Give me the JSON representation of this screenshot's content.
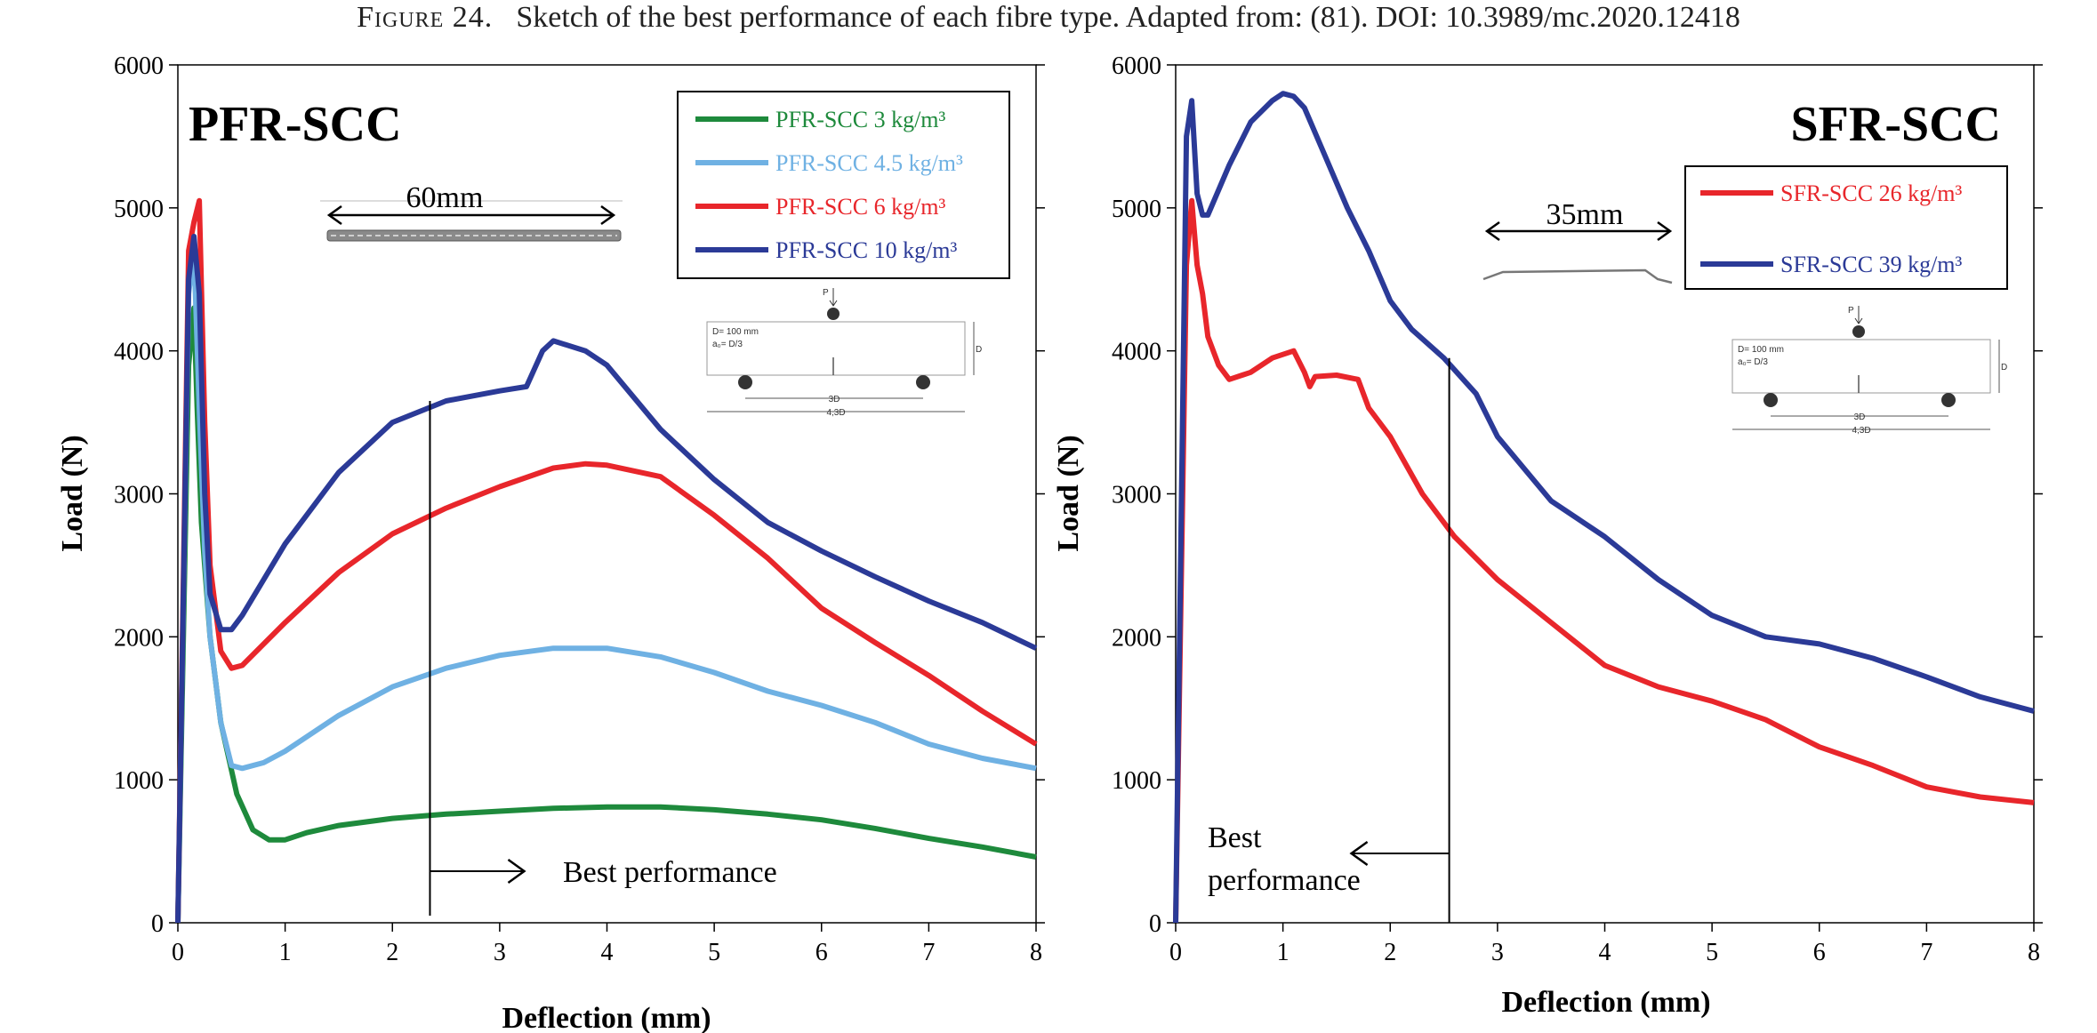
{
  "caption": {
    "label": "Figure 24.",
    "text": "Sketch of the best performance of each fibre type. Adapted from: (81). DOI: 10.3989/mc.2020.12418"
  },
  "colors": {
    "green": "#1e8a3c",
    "light_blue": "#6fb1e3",
    "red": "#e8262b",
    "dark_blue": "#2b3a97"
  },
  "chart_data": [
    {
      "type": "line",
      "title": "PFR-SCC",
      "xlabel": "Deflection (mm)",
      "ylabel": "Load (N)",
      "xlim": [
        0,
        8
      ],
      "ylim": [
        0,
        6000
      ],
      "x_ticks": [
        0,
        1,
        2,
        3,
        4,
        5,
        6,
        7,
        8
      ],
      "y_ticks": [
        0,
        1000,
        2000,
        3000,
        4000,
        5000,
        6000
      ],
      "legend_position": "top-right",
      "fibre_length_label": "60mm",
      "best_performance": {
        "deflection": 2.35,
        "label": "Best performance",
        "direction": "right"
      },
      "series": [
        {
          "name": "PFR-SCC 3 kg/m³",
          "color": "#1e8a3c",
          "x": [
            0,
            0.1,
            0.15,
            0.18,
            0.22,
            0.3,
            0.4,
            0.55,
            0.7,
            0.85,
            1.0,
            1.2,
            1.5,
            2.0,
            2.5,
            3.0,
            3.5,
            4.0,
            4.5,
            5.0,
            5.5,
            6.0,
            6.5,
            7.0,
            7.5,
            8.0
          ],
          "y": [
            0,
            3900,
            4300,
            3600,
            2800,
            2000,
            1400,
            900,
            650,
            580,
            580,
            630,
            680,
            730,
            760,
            780,
            800,
            810,
            810,
            790,
            760,
            720,
            660,
            590,
            530,
            460
          ]
        },
        {
          "name": "PFR-SCC 4.5 kg/m³",
          "color": "#6fb1e3",
          "x": [
            0,
            0.1,
            0.15,
            0.2,
            0.25,
            0.3,
            0.4,
            0.5,
            0.6,
            0.8,
            1.0,
            1.5,
            2.0,
            2.5,
            3.0,
            3.5,
            4.0,
            4.5,
            5.0,
            5.5,
            6.0,
            6.5,
            7.0,
            7.5,
            8.0
          ],
          "y": [
            0,
            4400,
            4700,
            3600,
            2600,
            2000,
            1400,
            1100,
            1080,
            1120,
            1200,
            1450,
            1650,
            1780,
            1870,
            1920,
            1920,
            1860,
            1750,
            1620,
            1520,
            1400,
            1250,
            1150,
            1080
          ]
        },
        {
          "name": "PFR-SCC 6 kg/m³",
          "color": "#e8262b",
          "x": [
            0,
            0.1,
            0.15,
            0.2,
            0.25,
            0.3,
            0.4,
            0.5,
            0.6,
            0.8,
            1.0,
            1.5,
            2.0,
            2.5,
            3.0,
            3.5,
            3.8,
            4.0,
            4.5,
            5.0,
            5.5,
            6.0,
            6.5,
            7.0,
            7.5,
            8.0
          ],
          "y": [
            0,
            4700,
            4900,
            5050,
            3500,
            2500,
            1900,
            1780,
            1800,
            1950,
            2100,
            2450,
            2720,
            2900,
            3050,
            3180,
            3210,
            3200,
            3120,
            2850,
            2550,
            2200,
            1960,
            1730,
            1480,
            1250
          ]
        },
        {
          "name": "PFR-SCC 10 kg/m³",
          "color": "#2b3a97",
          "x": [
            0,
            0.1,
            0.15,
            0.2,
            0.25,
            0.3,
            0.4,
            0.5,
            0.6,
            0.8,
            1.0,
            1.5,
            2.0,
            2.5,
            3.0,
            3.25,
            3.4,
            3.5,
            3.8,
            4.0,
            4.5,
            5.0,
            5.5,
            6.0,
            6.5,
            7.0,
            7.5,
            8.0
          ],
          "y": [
            0,
            4500,
            4800,
            4400,
            3000,
            2300,
            2050,
            2050,
            2150,
            2400,
            2650,
            3150,
            3500,
            3650,
            3720,
            3750,
            4000,
            4070,
            4000,
            3900,
            3450,
            3100,
            2800,
            2600,
            2420,
            2250,
            2100,
            1920
          ]
        }
      ],
      "schematic": {
        "labels": [
          "P",
          "D= 100 mm",
          "a₀= D/3",
          "D",
          "3D",
          "4,3D"
        ]
      }
    },
    {
      "type": "line",
      "title": "SFR-SCC",
      "xlabel": "Deflection (mm)",
      "ylabel": "Load (N)",
      "xlim": [
        0,
        8
      ],
      "ylim": [
        0,
        6000
      ],
      "x_ticks": [
        0,
        1,
        2,
        3,
        4,
        5,
        6,
        7,
        8
      ],
      "y_ticks": [
        0,
        1000,
        2000,
        3000,
        4000,
        5000,
        6000
      ],
      "legend_position": "top-right",
      "fibre_length_label": "35mm",
      "best_performance": {
        "deflection": 2.55,
        "label_lines": [
          "Best",
          "performance"
        ],
        "direction": "left"
      },
      "series": [
        {
          "name": "SFR-SCC 26 kg/m³",
          "color": "#e8262b",
          "x": [
            0,
            0.1,
            0.15,
            0.2,
            0.25,
            0.3,
            0.4,
            0.5,
            0.7,
            0.9,
            1.1,
            1.2,
            1.25,
            1.3,
            1.5,
            1.7,
            1.8,
            2.0,
            2.3,
            2.6,
            3.0,
            3.5,
            4.0,
            4.5,
            5.0,
            5.5,
            6.0,
            6.5,
            7.0,
            7.5,
            8.0
          ],
          "y": [
            0,
            4600,
            5050,
            4600,
            4400,
            4100,
            3900,
            3800,
            3850,
            3950,
            4000,
            3850,
            3750,
            3820,
            3830,
            3800,
            3600,
            3400,
            3000,
            2700,
            2400,
            2100,
            1800,
            1650,
            1550,
            1420,
            1230,
            1100,
            950,
            880,
            840
          ]
        },
        {
          "name": "SFR-SCC 39 kg/m³",
          "color": "#2b3a97",
          "x": [
            0,
            0.1,
            0.15,
            0.2,
            0.25,
            0.3,
            0.5,
            0.7,
            0.9,
            1.0,
            1.1,
            1.2,
            1.4,
            1.6,
            1.8,
            2.0,
            2.2,
            2.5,
            2.8,
            3.0,
            3.5,
            4.0,
            4.5,
            5.0,
            5.5,
            6.0,
            6.5,
            7.0,
            7.5,
            8.0
          ],
          "y": [
            0,
            5500,
            5750,
            5100,
            4950,
            4950,
            5300,
            5600,
            5750,
            5800,
            5780,
            5700,
            5350,
            5000,
            4700,
            4350,
            4150,
            3950,
            3700,
            3400,
            2950,
            2700,
            2400,
            2150,
            2000,
            1950,
            1850,
            1720,
            1580,
            1480
          ]
        }
      ],
      "schematic": {
        "labels": [
          "P",
          "D= 100 mm",
          "a₀= D/3",
          "D",
          "3D",
          "4,3D"
        ]
      }
    }
  ]
}
